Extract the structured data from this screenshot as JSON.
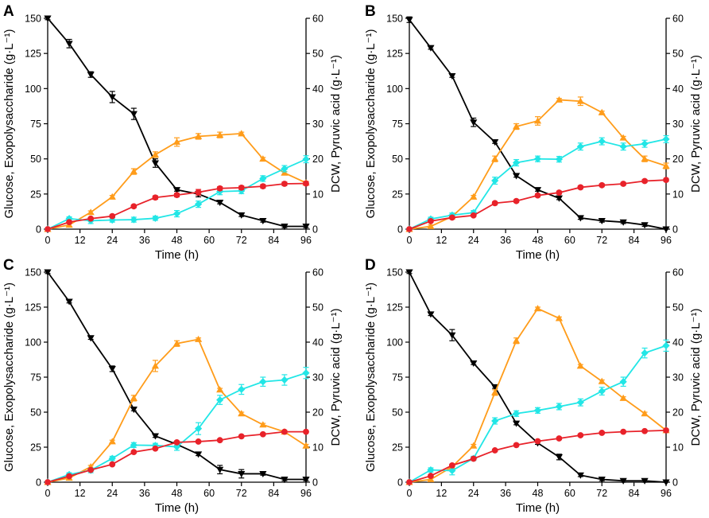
{
  "figure": {
    "x_axis_label": "Time (h)",
    "y_left_label": "Glucose, Exopolysaccharide (g·L⁻¹)",
    "y_right_label": "DCW, Pyruvic acid (g·L⁻¹)"
  },
  "colors": {
    "glucose": "#000000",
    "exopolysaccharide": "#ff9c1a",
    "dcw": "#e8222a",
    "pyruvic_acid": "#22e6e6"
  },
  "chart_data": [
    {
      "type": "line",
      "panel": "A",
      "x": [
        0,
        8,
        16,
        24,
        32,
        40,
        48,
        56,
        64,
        72,
        80,
        88,
        96
      ],
      "xlabel": "Time (h)",
      "ylabel_left": "Glucose, Exopolysaccharide (g·L⁻¹)",
      "ylabel_right": "DCW, Pyruvic acid (g·L⁻¹)",
      "xlim": [
        0,
        96
      ],
      "xticks": [
        0,
        12,
        24,
        36,
        48,
        60,
        72,
        84,
        96
      ],
      "ylim_left": [
        0,
        150
      ],
      "yticks_left": [
        0,
        25,
        50,
        75,
        100,
        125,
        150
      ],
      "ylim_right": [
        0,
        60
      ],
      "yticks_right": [
        0,
        10,
        20,
        30,
        40,
        50,
        60
      ],
      "series": [
        {
          "name": "Glucose",
          "axis": "left",
          "marker": "triangle-down",
          "color_key": "glucose",
          "values": [
            150,
            132,
            110,
            94,
            82,
            47,
            28,
            25,
            19,
            10,
            6,
            2,
            2
          ],
          "errors": [
            1,
            3,
            2,
            4,
            4,
            3,
            1,
            2,
            1,
            1,
            1,
            1,
            1
          ]
        },
        {
          "name": "Exopolysaccharide",
          "axis": "left",
          "marker": "triangle-up",
          "color_key": "exopolysaccharide",
          "values": [
            0,
            3,
            12,
            23,
            41,
            53,
            62,
            66,
            67,
            68,
            50,
            40,
            33
          ],
          "errors": [
            0,
            1,
            1,
            1,
            2,
            2,
            3,
            2,
            2,
            1,
            1,
            1,
            1
          ]
        },
        {
          "name": "DCW",
          "axis": "right",
          "marker": "circle",
          "color_key": "dcw",
          "values": [
            0,
            2,
            3,
            3.7,
            6.5,
            9,
            9.7,
            10.5,
            11.6,
            11.8,
            12.2,
            12.9,
            13
          ],
          "errors": [
            0,
            0.3,
            0.3,
            0.4,
            0.4,
            0.5,
            0.5,
            0.8,
            0.5,
            0.5,
            0.5,
            0.5,
            0.5
          ]
        },
        {
          "name": "Pyruvic acid",
          "axis": "right",
          "marker": "diamond",
          "color_key": "pyruvic_acid",
          "values": [
            0,
            3,
            2.4,
            2.6,
            2.7,
            3.1,
            4.4,
            7.1,
            10.7,
            10.9,
            14.4,
            17.2,
            19.9
          ],
          "errors": [
            0,
            0.5,
            0.8,
            0.6,
            0.7,
            0.6,
            0.9,
            0.9,
            0.9,
            0.8,
            0.8,
            0.9,
            1.0
          ]
        }
      ]
    },
    {
      "type": "line",
      "panel": "B",
      "x": [
        0,
        8,
        16,
        24,
        32,
        40,
        48,
        56,
        64,
        72,
        80,
        88,
        96
      ],
      "xlabel": "Time (h)",
      "ylabel_left": "Glucose, Exopolysaccharide (g·L⁻¹)",
      "ylabel_right": "DCW, Pyruvic acid (g·L⁻¹)",
      "xlim": [
        0,
        96
      ],
      "xticks": [
        0,
        12,
        24,
        36,
        48,
        60,
        72,
        84,
        96
      ],
      "ylim_left": [
        0,
        150
      ],
      "yticks_left": [
        0,
        25,
        50,
        75,
        100,
        125,
        150
      ],
      "ylim_right": [
        0,
        60
      ],
      "yticks_right": [
        0,
        10,
        20,
        30,
        40,
        50,
        60
      ],
      "series": [
        {
          "name": "Glucose",
          "axis": "left",
          "marker": "triangle-down",
          "color_key": "glucose",
          "values": [
            149,
            129,
            109,
            76,
            62,
            38,
            28,
            22,
            8,
            6,
            5,
            3,
            0
          ],
          "errors": [
            2,
            1,
            1,
            3,
            1,
            1,
            1,
            1,
            1,
            1,
            1,
            1,
            1
          ]
        },
        {
          "name": "Exopolysaccharide",
          "axis": "left",
          "marker": "triangle-up",
          "color_key": "exopolysaccharide",
          "values": [
            0,
            2,
            9,
            23,
            50,
            73,
            77,
            92,
            91,
            83,
            65,
            50,
            45
          ],
          "errors": [
            0,
            1,
            1,
            1,
            2,
            2,
            3,
            1,
            3,
            1,
            1,
            2,
            2
          ]
        },
        {
          "name": "DCW",
          "axis": "right",
          "marker": "circle",
          "color_key": "dcw",
          "values": [
            0,
            2.3,
            3.3,
            3.9,
            7.4,
            8,
            9.6,
            10.4,
            11.9,
            12.5,
            12.9,
            13.7,
            14
          ],
          "errors": [
            0,
            0.3,
            0.3,
            0.3,
            0.4,
            0.4,
            0.4,
            0.4,
            0.4,
            0.4,
            0.4,
            0.4,
            0.4
          ]
        },
        {
          "name": "Pyruvic acid",
          "axis": "right",
          "marker": "diamond",
          "color_key": "pyruvic_acid",
          "values": [
            0,
            2.9,
            4,
            4.7,
            13.8,
            18.9,
            20,
            19.9,
            23.5,
            25,
            23.5,
            24.3,
            25.6
          ],
          "errors": [
            0,
            0.5,
            0.6,
            0.6,
            1.0,
            0.9,
            0.8,
            0.8,
            1.0,
            1.0,
            1.0,
            1.0,
            1.0
          ]
        }
      ]
    },
    {
      "type": "line",
      "panel": "C",
      "x": [
        0,
        8,
        16,
        24,
        32,
        40,
        48,
        56,
        64,
        72,
        80,
        88,
        96
      ],
      "xlabel": "Time (h)",
      "ylabel_left": "Glucose, Exopolysaccharide (g·L⁻¹)",
      "ylabel_right": "DCW, Pyruvic acid (g·L⁻¹)",
      "xlim": [
        0,
        96
      ],
      "xticks": [
        0,
        12,
        24,
        36,
        48,
        60,
        72,
        84,
        96
      ],
      "ylim_left": [
        0,
        150
      ],
      "yticks_left": [
        0,
        25,
        50,
        75,
        100,
        125,
        150
      ],
      "ylim_right": [
        0,
        60
      ],
      "yticks_right": [
        0,
        10,
        20,
        30,
        40,
        50,
        60
      ],
      "series": [
        {
          "name": "Glucose",
          "axis": "left",
          "marker": "triangle-down",
          "color_key": "glucose",
          "values": [
            150,
            129,
            103,
            81,
            52,
            33,
            27,
            20,
            9,
            6,
            6,
            2,
            2
          ],
          "errors": [
            1,
            1,
            1,
            2,
            1,
            1,
            1,
            1,
            3,
            3,
            1,
            1,
            1
          ]
        },
        {
          "name": "Exopolysaccharide",
          "axis": "left",
          "marker": "triangle-up",
          "color_key": "exopolysaccharide",
          "values": [
            0,
            3,
            11,
            29,
            60,
            83,
            99,
            102,
            66,
            49,
            41,
            36,
            26
          ],
          "errors": [
            0,
            1,
            1,
            1,
            2,
            4,
            2,
            1,
            1,
            1,
            1,
            1,
            1
          ]
        },
        {
          "name": "DCW",
          "axis": "right",
          "marker": "circle",
          "color_key": "dcw",
          "values": [
            0,
            1.7,
            3.5,
            5.1,
            8.6,
            9.6,
            11.4,
            11.6,
            12,
            13.1,
            13.7,
            14.4,
            14.4
          ],
          "errors": [
            0,
            0.3,
            0.3,
            0.3,
            0.3,
            0.3,
            0.3,
            0.3,
            0.3,
            0.3,
            0.3,
            0.3,
            0.3
          ]
        },
        {
          "name": "Pyruvic acid",
          "axis": "right",
          "marker": "diamond",
          "color_key": "pyruvic_acid",
          "values": [
            0,
            2.2,
            3.4,
            6.8,
            10.6,
            10.5,
            10.1,
            15.3,
            23.5,
            26.5,
            28.7,
            29.2,
            31.2
          ],
          "errors": [
            0,
            0.5,
            0.7,
            0.6,
            0.7,
            0.6,
            1.0,
            1.7,
            1.3,
            1.4,
            1.3,
            1.5,
            1.6
          ]
        }
      ]
    },
    {
      "type": "line",
      "panel": "D",
      "x": [
        0,
        8,
        16,
        24,
        32,
        40,
        48,
        56,
        64,
        72,
        80,
        88,
        96
      ],
      "xlabel": "Time (h)",
      "ylabel_left": "Glucose, Exopolysaccharide (g·L⁻¹)",
      "ylabel_right": "DCW, Pyruvic acid (g·L⁻¹)",
      "xlim": [
        0,
        96
      ],
      "xticks": [
        0,
        12,
        24,
        36,
        48,
        60,
        72,
        84,
        96
      ],
      "ylim_left": [
        0,
        150
      ],
      "yticks_left": [
        0,
        25,
        50,
        75,
        100,
        125,
        150
      ],
      "ylim_right": [
        0,
        60
      ],
      "yticks_right": [
        0,
        10,
        20,
        30,
        40,
        50,
        60
      ],
      "series": [
        {
          "name": "Glucose",
          "axis": "left",
          "marker": "triangle-down",
          "color_key": "glucose",
          "values": [
            150,
            120,
            105,
            85,
            68,
            42,
            28,
            18,
            5,
            2,
            1,
            1,
            0
          ],
          "errors": [
            1,
            1,
            4,
            1,
            1,
            1,
            1,
            2,
            1,
            1,
            1,
            1,
            1
          ]
        },
        {
          "name": "Exopolysaccharide",
          "axis": "left",
          "marker": "triangle-up",
          "color_key": "exopolysaccharide",
          "values": [
            0,
            2,
            11,
            26,
            64,
            101,
            124,
            117,
            83,
            72,
            60,
            49,
            37
          ],
          "errors": [
            0,
            1,
            1,
            1,
            2,
            2,
            1,
            1,
            1,
            1,
            1,
            1,
            1
          ]
        },
        {
          "name": "DCW",
          "axis": "right",
          "marker": "circle",
          "color_key": "dcw",
          "values": [
            0,
            1.8,
            4.8,
            6.7,
            9.1,
            10.6,
            11.7,
            12.5,
            13.4,
            14.1,
            14.4,
            14.6,
            14.8
          ],
          "errors": [
            0,
            0.3,
            0.3,
            0.3,
            0.3,
            0.3,
            0.3,
            0.3,
            0.3,
            0.3,
            0.3,
            0.3,
            0.3
          ]
        },
        {
          "name": "Pyruvic acid",
          "axis": "right",
          "marker": "diamond",
          "color_key": "pyruvic_acid",
          "values": [
            0,
            3.5,
            3.3,
            6.8,
            17.5,
            19.6,
            20.5,
            21.6,
            22.8,
            26,
            28.7,
            36.9,
            39
          ],
          "errors": [
            0,
            0.6,
            1.2,
            0.6,
            0.9,
            0.8,
            0.8,
            0.9,
            1.0,
            1.1,
            1.3,
            1.4,
            1.6
          ]
        }
      ]
    }
  ]
}
